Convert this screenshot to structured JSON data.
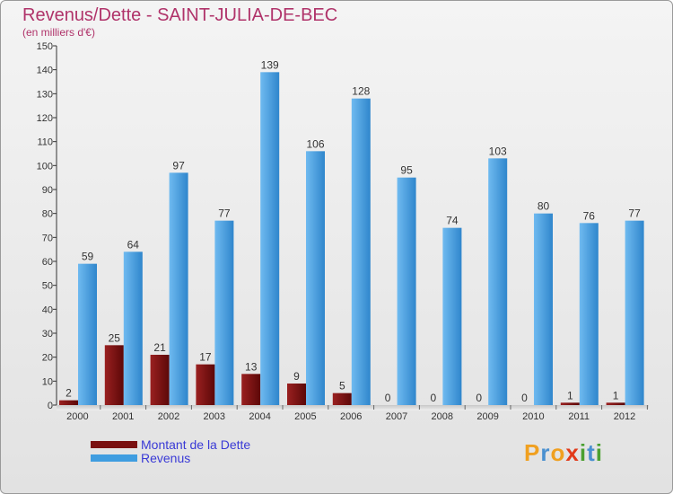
{
  "chart_data": {
    "type": "bar",
    "title": "Revenus/Dette - SAINT-JULIA-DE-BEC",
    "subtitle": "(en milliers d'€)",
    "categories": [
      "2000",
      "2001",
      "2002",
      "2003",
      "2004",
      "2005",
      "2006",
      "2007",
      "2008",
      "2009",
      "2010",
      "2011",
      "2012"
    ],
    "series": [
      {
        "name": "Montant de la Dette",
        "color": "#7a1010",
        "values": [
          2,
          25,
          21,
          17,
          13,
          9,
          5,
          0,
          0,
          0,
          0,
          1,
          1
        ]
      },
      {
        "name": "Revenus",
        "color": "#3f9de0",
        "values": [
          59,
          64,
          97,
          77,
          139,
          106,
          128,
          95,
          74,
          103,
          80,
          76,
          77
        ]
      }
    ],
    "ylim": [
      0,
      150
    ],
    "yticks": [
      0,
      10,
      20,
      30,
      40,
      50,
      60,
      70,
      80,
      90,
      100,
      110,
      120,
      130,
      140,
      150
    ],
    "grid": false,
    "legend_position": "bottom-left"
  },
  "logo": {
    "letters": [
      "P",
      "r",
      "o",
      "x",
      "i",
      "t",
      "i"
    ],
    "colors": [
      "#f0a020",
      "#4a90d0",
      "#f0a020",
      "#e23a1a",
      "#4aa030",
      "#4a90d0",
      "#4aa030"
    ]
  }
}
